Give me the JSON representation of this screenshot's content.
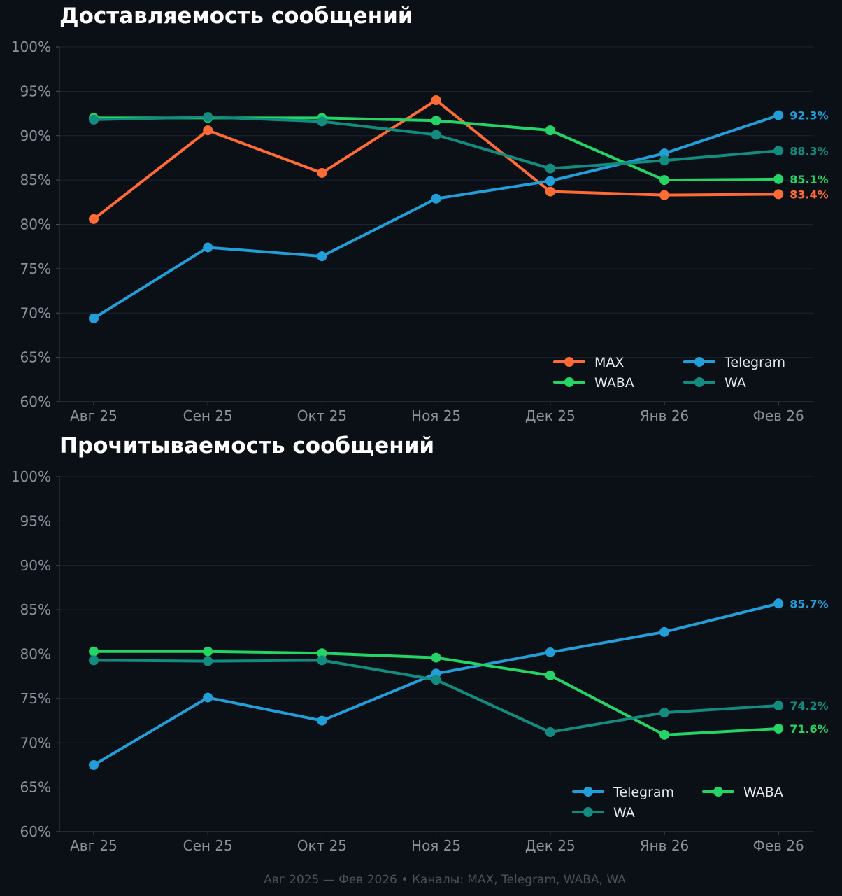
{
  "chart_data": [
    {
      "type": "line",
      "title": "Доставляемость сообщений",
      "categories": [
        "Авг 25",
        "Сен 25",
        "Окт 25",
        "Ноя 25",
        "Дек 25",
        "Янв 26",
        "Фев 26"
      ],
      "yticks": [
        "60%",
        "65%",
        "70%",
        "75%",
        "80%",
        "85%",
        "90%",
        "95%",
        "100%"
      ],
      "ylim": [
        60,
        100
      ],
      "grid": true,
      "legend_position": "bottom-right",
      "legend_columns": 2,
      "series": [
        {
          "name": "MAX",
          "color": "#ff6b35",
          "values": [
            80.6,
            90.6,
            85.8,
            94.0,
            83.7,
            83.3,
            83.4
          ],
          "end_label": "83.4%"
        },
        {
          "name": "Telegram",
          "color": "#229ed9",
          "values": [
            69.4,
            77.4,
            76.4,
            82.9,
            84.9,
            88.0,
            92.3
          ],
          "end_label": "92.3%"
        },
        {
          "name": "WABA",
          "color": "#25d366",
          "values": [
            92.0,
            92.0,
            92.0,
            91.7,
            90.6,
            85.0,
            85.1
          ],
          "end_label": "85.1%"
        },
        {
          "name": "WA",
          "color": "#128c7e",
          "values": [
            91.8,
            92.1,
            91.6,
            90.1,
            86.3,
            87.2,
            88.3
          ],
          "end_label": "88.3%"
        }
      ]
    },
    {
      "type": "line",
      "title": "Прочитываемость сообщений",
      "categories": [
        "Авг 25",
        "Сен 25",
        "Окт 25",
        "Ноя 25",
        "Дек 25",
        "Янв 26",
        "Фев 26"
      ],
      "yticks": [
        "60%",
        "65%",
        "70%",
        "75%",
        "80%",
        "85%",
        "90%",
        "95%",
        "100%"
      ],
      "ylim": [
        60,
        100
      ],
      "grid": true,
      "legend_position": "bottom-right",
      "legend_columns": 2,
      "series": [
        {
          "name": "Telegram",
          "color": "#229ed9",
          "values": [
            67.5,
            75.1,
            72.5,
            77.8,
            80.2,
            82.5,
            85.7
          ],
          "end_label": "85.7%"
        },
        {
          "name": "WABA",
          "color": "#25d366",
          "values": [
            80.3,
            80.3,
            80.1,
            79.6,
            77.6,
            70.9,
            71.6
          ],
          "end_label": "71.6%"
        },
        {
          "name": "WA",
          "color": "#128c7e",
          "values": [
            79.3,
            79.2,
            79.3,
            77.1,
            71.2,
            73.4,
            74.2
          ],
          "end_label": "74.2%"
        }
      ]
    }
  ],
  "footer": "Авг 2025 — Фев 2026  •  Каналы: MAX, Telegram, WABA, WA"
}
